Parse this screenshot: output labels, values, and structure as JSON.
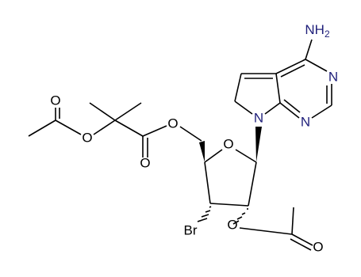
{
  "atoms": [
    "N",
    "N",
    "N",
    "O",
    "O",
    "O",
    "O",
    "O",
    "Br",
    "O",
    "O"
  ],
  "amine": {
    "text": "NH",
    "subscript": "2"
  }
}
